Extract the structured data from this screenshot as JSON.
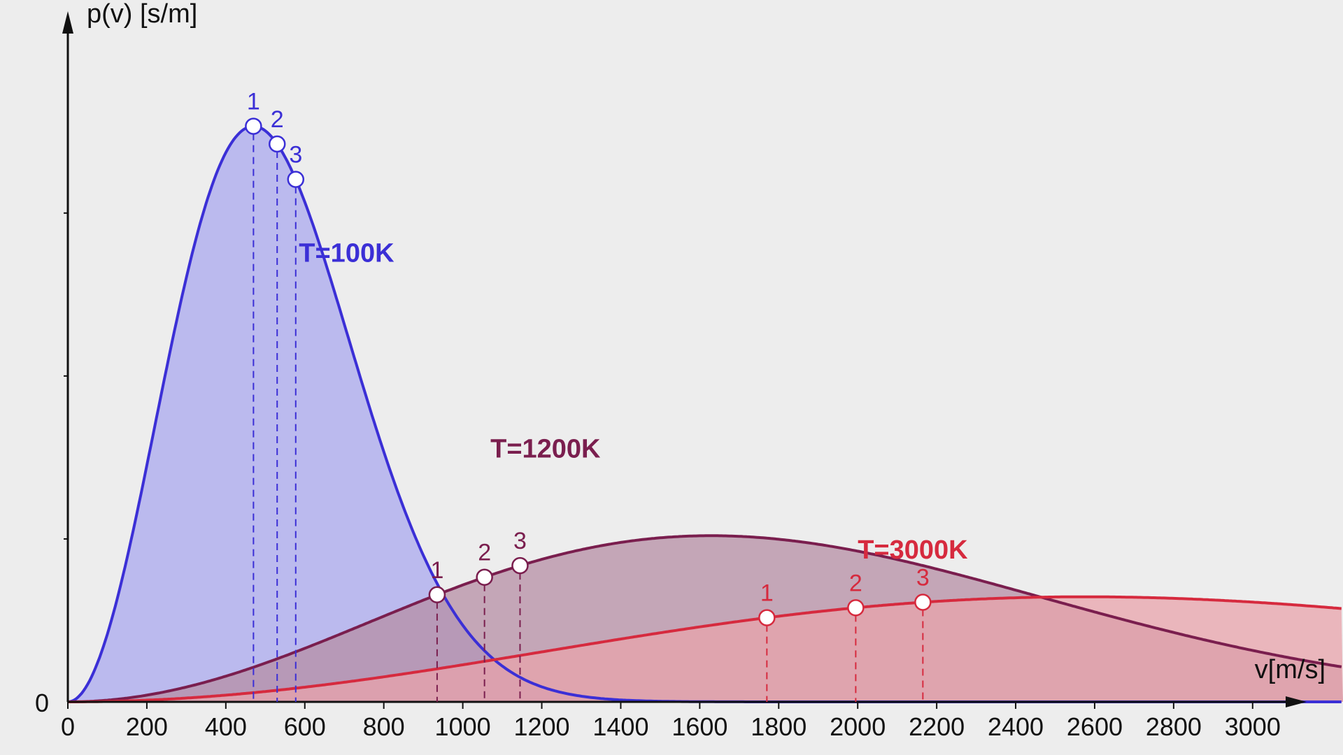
{
  "chart_data": {
    "type": "area",
    "x_axis": {
      "label": "v[m/s]",
      "range": [
        0,
        3300
      ],
      "ticks": [
        0,
        200,
        400,
        600,
        800,
        1000,
        1200,
        1400,
        1600,
        1800,
        2000,
        2200,
        2400,
        2600,
        2800,
        3000
      ]
    },
    "y_axis": {
      "label": "p(v) [s/m]",
      "origin_label": "0",
      "range": [
        0,
        0.00195
      ],
      "minor_ticks": [
        0.0005,
        0.001,
        0.0015
      ],
      "tick_labels_shown": false
    },
    "grid": false,
    "series": [
      {
        "name": "T=100K",
        "temperature_K": 100,
        "line_color": "#3b2fd6",
        "fill_color": "#aaa8ee",
        "points": [
          {
            "label": "1",
            "x": 470
          },
          {
            "label": "2",
            "x": 530
          },
          {
            "label": "3",
            "x": 577
          }
        ]
      },
      {
        "name": "T=1200K",
        "temperature_K": 1200,
        "line_color": "#7a1e4e",
        "fill_color": "#b58ea4",
        "points": [
          {
            "label": "1",
            "x": 935
          },
          {
            "label": "2",
            "x": 1055
          },
          {
            "label": "3",
            "x": 1145
          }
        ]
      },
      {
        "name": "T=3000K",
        "temperature_K": 3000,
        "line_color": "#d62a3e",
        "fill_color": "#e8a3ab",
        "points": [
          {
            "label": "1",
            "x": 1770
          },
          {
            "label": "2",
            "x": 1995
          },
          {
            "label": "3",
            "x": 2165
          }
        ]
      }
    ]
  }
}
